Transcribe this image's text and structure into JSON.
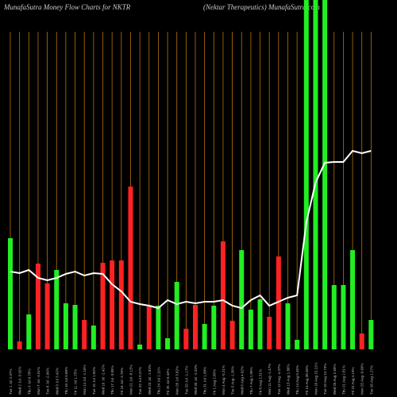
{
  "chart_data": {
    "type": "bar",
    "title": "MunafaSutra  Money Flow  Charts for NKTR",
    "subtitle": "(Nektar Therapeutics) MunafaSutra.com",
    "categories": [
      "Tue 1 Jul 2.37%",
      "Wed 2 Jul -3.92%",
      "Thu 3 Jul 0.78%",
      "Mon 7 Jul -4.51%",
      "Tue 8 Jul -2.96%",
      "Wed 9 Jul 3.42%",
      "Thu 10 Jul 0.88%",
      "Fri 11 Jul 1.75%",
      "Mon 14 Jul -1.16%",
      "Tue 15 Jul 1.02%",
      "Wed 16 Jul -2.42%",
      "Thu 17 Jul -3.05%",
      "Fri 18 Jul -2.76%",
      "Mon 21 Jul -8.13%",
      "Tue 22 Jul 0.27%",
      "Wed 23 Jul -1.83%",
      "Thu 24 Jul 2.11%",
      "Fri 25 Jul 0.42%",
      "Mon 28 Jul 3.82%",
      "Tue 29 Jul -1.17%",
      "Wed 30 Jul -2.33%",
      "Thu 31 Jul 1.08%",
      "Fri 1 Aug 2.05%",
      "Mon 4 Aug -5.21%",
      "Tue 5 Aug -1.36%",
      "Wed 6 Aug 4.02%",
      "Thu 7 Aug 1.95%",
      "Fri 8 Aug 2.31%",
      "Mon 11 Aug -1.47%",
      "Tue 12 Aug -4.37%",
      "Wed 13 Aug 1.86%",
      "Thu 14 Aug 0.45%",
      "Fri 15 Aug 38.36%",
      "Mon 18 Aug 15.21%",
      "Tue 19 Aug 12.73%",
      "Wed 20 Aug 2.65%",
      "Thu 21 Aug 2.81%",
      "Fri 22 Aug 4.19%",
      "Mon 25 Aug -0.69%",
      "Tue 26 Aug 1.27%"
    ],
    "values": [
      140,
      10,
      44,
      108,
      83,
      100,
      58,
      56,
      37,
      30,
      109,
      112,
      112,
      205,
      6,
      54,
      55,
      14,
      85,
      26,
      56,
      32,
      55,
      136,
      36,
      125,
      50,
      63,
      41,
      117,
      58,
      12,
      440,
      440,
      440,
      81,
      81,
      125,
      20,
      37
    ],
    "colors": [
      "#22ee22",
      "#ff2222",
      "#22ee22",
      "#ff2222",
      "#ff2222",
      "#22ee22",
      "#22ee22",
      "#22ee22",
      "#ff2222",
      "#22ee22",
      "#ff2222",
      "#ff2222",
      "#ff2222",
      "#ff2222",
      "#22ee22",
      "#ff2222",
      "#22ee22",
      "#22ee22",
      "#22ee22",
      "#ff2222",
      "#ff2222",
      "#22ee22",
      "#22ee22",
      "#ff2222",
      "#ff2222",
      "#22ee22",
      "#22ee22",
      "#22ee22",
      "#ff2222",
      "#ff2222",
      "#22ee22",
      "#22ee22",
      "#22ee22",
      "#22ee22",
      "#22ee22",
      "#22ee22",
      "#22ee22",
      "#22ee22",
      "#ff2222",
      "#22ee22"
    ],
    "line": [
      98,
      96,
      100,
      90,
      87,
      90,
      95,
      98,
      93,
      96,
      95,
      82,
      73,
      60,
      57,
      55,
      52,
      62,
      57,
      60,
      58,
      60,
      60,
      62,
      55,
      52,
      62,
      68,
      55,
      60,
      65,
      68,
      160,
      210,
      235,
      236,
      236,
      250,
      247,
      250
    ],
    "line_color": "#ffffff",
    "grid_color": "#b8720a",
    "ylim": [
      0,
      440
    ]
  }
}
